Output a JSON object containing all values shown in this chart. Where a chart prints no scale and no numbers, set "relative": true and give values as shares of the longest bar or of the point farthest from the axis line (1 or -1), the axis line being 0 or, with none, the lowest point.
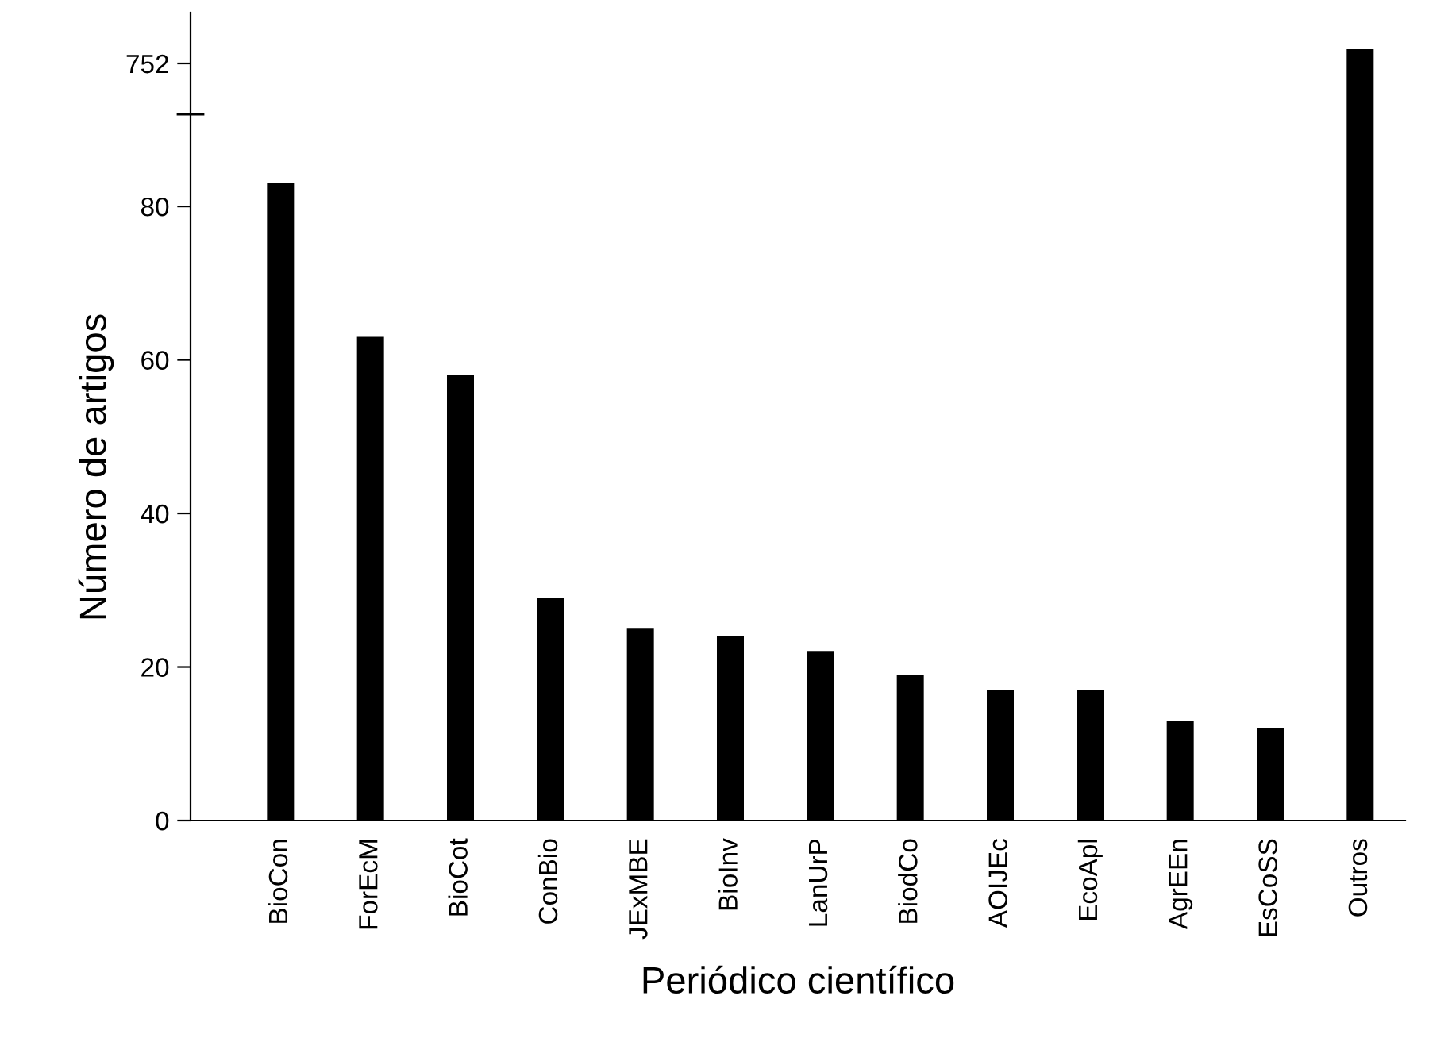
{
  "chart_data": [
    {
      "type": "bar",
      "categories": [
        null,
        null,
        null,
        null,
        null,
        null,
        null,
        null,
        null,
        null,
        null,
        null,
        null
      ],
      "series": [
        {
          "color": "#000000",
          "values": [
            null,
            null,
            null,
            null,
            null,
            null,
            null,
            null,
            null,
            null,
            null,
            null,
            1
          ]
        }
      ],
      "relative": true,
      "annotations": [
        "752"
      ],
      "grid": false,
      "legend": false
    },
    {
      "type": "bar",
      "categories": [
        "BioCon",
        "ForEcM",
        "BioCot",
        "ConBio",
        "JExMBE",
        "BioInv",
        "LanUrP",
        "BiodCo",
        "AOIJEc",
        "EcoApl",
        "AgrEEn",
        "EsCoSS",
        "Outros"
      ],
      "series": [
        {
          "color": "#000000",
          "values": [
            83,
            63,
            58,
            29,
            25,
            24,
            22,
            19,
            17,
            17,
            13,
            12,
            null
          ]
        }
      ],
      "ylim": [
        0,
        92
      ],
      "yticks": [
        0,
        20,
        40,
        60,
        80
      ],
      "xlabel": "Periódico científico",
      "ylabel": "Número de artigos",
      "grid": false,
      "legend": false
    }
  ]
}
